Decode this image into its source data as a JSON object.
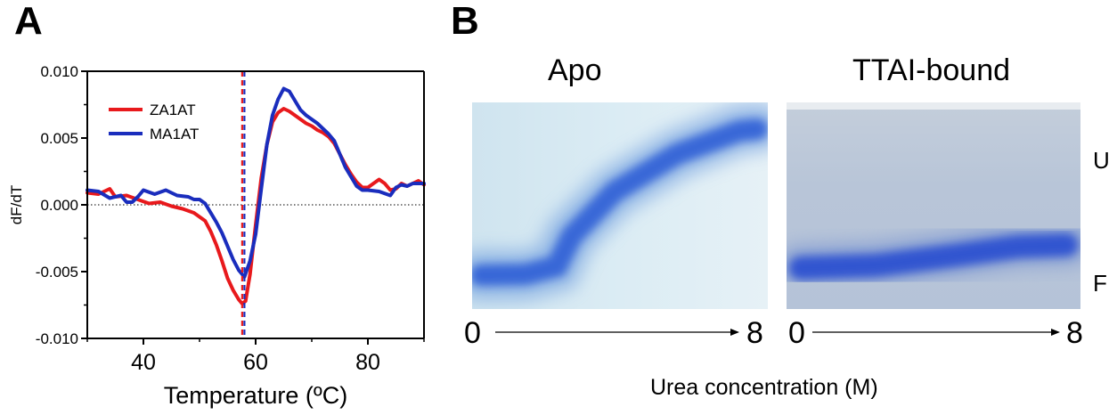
{
  "panel_labels": {
    "a": "A",
    "b": "B"
  },
  "chart_data": {
    "type": "line",
    "title": "",
    "xlabel": "Temperature (ºC)",
    "ylabel": "dF/dT",
    "xlim": [
      30,
      90
    ],
    "ylim": [
      -0.01,
      0.01
    ],
    "x_ticks": [
      40,
      60,
      80
    ],
    "x_tick_labels": [
      "40",
      "60",
      "80"
    ],
    "y_ticks": [
      -0.01,
      -0.005,
      0,
      0.005,
      0.01
    ],
    "y_tick_labels": [
      "-0.010",
      "-0.005",
      "0.000",
      "0.005",
      "0.010"
    ],
    "legend_position": "top-left",
    "grid": false,
    "zero_line": {
      "y": 0,
      "style": "dotted"
    },
    "series": [
      {
        "name": "ZA1AT",
        "color": "#e8191c",
        "tm_line_x": 57.6,
        "points": [
          [
            30,
            0.0009
          ],
          [
            32,
            0.0008
          ],
          [
            34,
            0.0012
          ],
          [
            35,
            0.0006
          ],
          [
            37,
            0.0007
          ],
          [
            39,
            0.0004
          ],
          [
            41,
            0.0001
          ],
          [
            43,
            0.0002
          ],
          [
            45,
            -0.0001
          ],
          [
            47,
            -0.0003
          ],
          [
            49,
            -0.0006
          ],
          [
            51,
            -0.0012
          ],
          [
            52,
            -0.002
          ],
          [
            53,
            -0.003
          ],
          [
            54,
            -0.0042
          ],
          [
            55,
            -0.0055
          ],
          [
            56,
            -0.0064
          ],
          [
            57,
            -0.0071
          ],
          [
            57.6,
            -0.0074
          ],
          [
            58.2,
            -0.0072
          ],
          [
            59,
            -0.0052
          ],
          [
            60,
            -0.0015
          ],
          [
            61,
            0.002
          ],
          [
            62,
            0.0045
          ],
          [
            63,
            0.0062
          ],
          [
            64,
            0.0069
          ],
          [
            65,
            0.0072
          ],
          [
            66,
            0.007
          ],
          [
            67,
            0.0067
          ],
          [
            68,
            0.0064
          ],
          [
            69,
            0.0061
          ],
          [
            70,
            0.0059
          ],
          [
            71,
            0.0056
          ],
          [
            72,
            0.0054
          ],
          [
            73,
            0.0051
          ],
          [
            74,
            0.0046
          ],
          [
            75,
            0.0038
          ],
          [
            76,
            0.003
          ],
          [
            77,
            0.0023
          ],
          [
            78,
            0.0017
          ],
          [
            79,
            0.0013
          ],
          [
            80,
            0.0013
          ],
          [
            81,
            0.0016
          ],
          [
            82,
            0.0019
          ],
          [
            83,
            0.0016
          ],
          [
            84,
            0.0011
          ],
          [
            85,
            0.0012
          ],
          [
            86,
            0.0016
          ],
          [
            87,
            0.0014
          ],
          [
            88,
            0.0016
          ],
          [
            89,
            0.0018
          ],
          [
            90,
            0.0015
          ]
        ]
      },
      {
        "name": "MA1AT",
        "color": "#1a2dbd",
        "tm_line_x": 58.0,
        "points": [
          [
            30,
            0.0011
          ],
          [
            32,
            0.001
          ],
          [
            34,
            0.0005
          ],
          [
            36,
            0.0007
          ],
          [
            37,
            0.0002
          ],
          [
            38,
            0.0002
          ],
          [
            39,
            0.0006
          ],
          [
            40,
            0.0011
          ],
          [
            42,
            0.0008
          ],
          [
            44,
            0.0011
          ],
          [
            46,
            0.0007
          ],
          [
            48,
            0.0006
          ],
          [
            49,
            0.0004
          ],
          [
            50,
            0.0004
          ],
          [
            51,
            0.0001
          ],
          [
            52,
            -0.0006
          ],
          [
            53,
            -0.0013
          ],
          [
            54,
            -0.0021
          ],
          [
            55,
            -0.0031
          ],
          [
            56,
            -0.0041
          ],
          [
            57,
            -0.0049
          ],
          [
            58,
            -0.0054
          ],
          [
            59,
            -0.0042
          ],
          [
            60,
            -0.0022
          ],
          [
            61,
            0.0012
          ],
          [
            62,
            0.0045
          ],
          [
            63,
            0.0067
          ],
          [
            64,
            0.0079
          ],
          [
            65,
            0.0087
          ],
          [
            66,
            0.0085
          ],
          [
            67,
            0.0078
          ],
          [
            68,
            0.0071
          ],
          [
            69,
            0.0067
          ],
          [
            70,
            0.0064
          ],
          [
            71,
            0.0061
          ],
          [
            72,
            0.0057
          ],
          [
            73,
            0.0053
          ],
          [
            74,
            0.0048
          ],
          [
            75,
            0.0038
          ],
          [
            76,
            0.0028
          ],
          [
            77,
            0.0021
          ],
          [
            78,
            0.0014
          ],
          [
            79,
            0.0011
          ],
          [
            80,
            0.0011
          ],
          [
            82,
            0.001
          ],
          [
            84,
            0.0007
          ],
          [
            85,
            0.0013
          ],
          [
            86,
            0.0015
          ],
          [
            87,
            0.0014
          ],
          [
            88,
            0.0016
          ],
          [
            90,
            0.0016
          ]
        ]
      }
    ]
  },
  "gels": {
    "apo_title": "Apo",
    "bound_title": "TTAI-bound",
    "label_u": "U",
    "label_f": "F",
    "apo_start": "0",
    "apo_end": "8",
    "bound_start": "0",
    "bound_end": "8",
    "x_caption": "Urea concentration (M)",
    "colors": {
      "apo_background": "#dcecf3",
      "bound_background": "#b7c4d6",
      "band": "#2b55d4"
    }
  }
}
